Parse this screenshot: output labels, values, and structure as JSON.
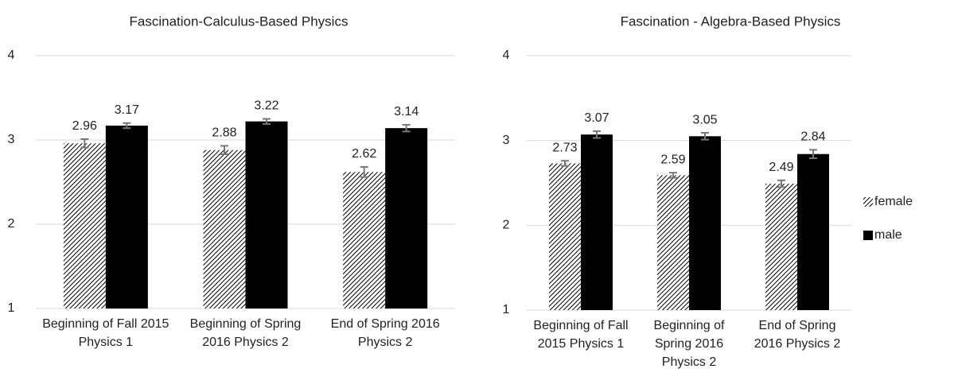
{
  "chart_data": [
    {
      "type": "bar",
      "title": "Fascination-Calculus-Based Physics",
      "categories": [
        "Beginning of Fall 2015 Physics 1",
        "Beginning of Spring 2016 Physics 2",
        "End of Spring 2016 Physics 2"
      ],
      "series": [
        {
          "name": "female",
          "color": "#000000",
          "pattern": "hatch",
          "values": [
            2.96,
            2.88,
            2.62
          ],
          "errors": [
            0.05,
            0.05,
            0.06
          ]
        },
        {
          "name": "male",
          "color": "#000000",
          "values": [
            3.17,
            3.22,
            3.14
          ],
          "errors": [
            0.03,
            0.03,
            0.04
          ]
        }
      ],
      "ylim": [
        1,
        4
      ],
      "yticks": [
        1,
        2,
        3,
        4
      ],
      "grid": true
    },
    {
      "type": "bar",
      "title": "Fascination - Algebra-Based Physics",
      "categories": [
        "Beginning of Fall 2015 Physics 1",
        "Beginning of Spring 2016 Physics 2",
        "End of Spring 2016 Physics 2"
      ],
      "series": [
        {
          "name": "female",
          "color": "#000000",
          "pattern": "hatch",
          "values": [
            2.73,
            2.59,
            2.49
          ],
          "errors": [
            0.03,
            0.03,
            0.04
          ]
        },
        {
          "name": "male",
          "color": "#000000",
          "values": [
            3.07,
            3.05,
            2.84
          ],
          "errors": [
            0.04,
            0.04,
            0.05
          ]
        }
      ],
      "ylim": [
        1,
        4
      ],
      "yticks": [
        1,
        2,
        3,
        4
      ],
      "grid": true,
      "legend": "right"
    }
  ]
}
